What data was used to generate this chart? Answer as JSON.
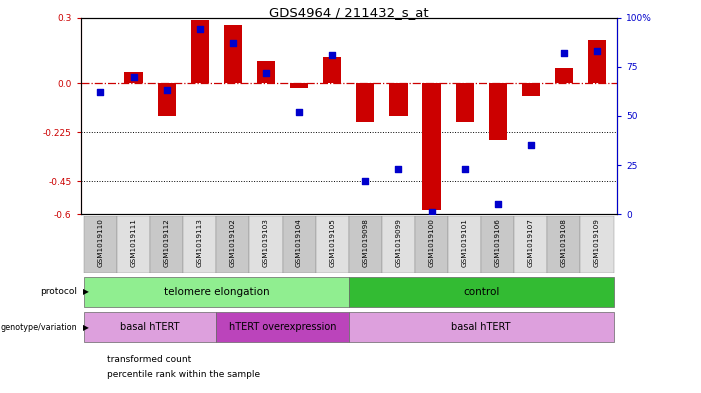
{
  "title": "GDS4964 / 211432_s_at",
  "samples": [
    "GSM1019110",
    "GSM1019111",
    "GSM1019112",
    "GSM1019113",
    "GSM1019102",
    "GSM1019103",
    "GSM1019104",
    "GSM1019105",
    "GSM1019098",
    "GSM1019099",
    "GSM1019100",
    "GSM1019101",
    "GSM1019106",
    "GSM1019107",
    "GSM1019108",
    "GSM1019109"
  ],
  "red_values": [
    0.0,
    0.05,
    -0.15,
    0.29,
    0.265,
    0.1,
    -0.02,
    0.12,
    -0.18,
    -0.15,
    -0.58,
    -0.18,
    -0.26,
    -0.06,
    0.07,
    0.2
  ],
  "blue_values": [
    62,
    70,
    63,
    94,
    87,
    72,
    52,
    81,
    17,
    23,
    1,
    23,
    5,
    35,
    82,
    83
  ],
  "ylim_left": [
    -0.6,
    0.3
  ],
  "ylim_right": [
    0,
    100
  ],
  "left_ticks": [
    0.3,
    0.0,
    -0.225,
    -0.45,
    -0.6
  ],
  "right_ticks": [
    100,
    75,
    50,
    25,
    0
  ],
  "hline_y": 0.0,
  "dotline1": -0.225,
  "dotline2": -0.45,
  "bar_color_red": "#CC0000",
  "bar_color_blue": "#0000CC",
  "bg_color": "#FFFFFF",
  "proto_colors": [
    "#90EE90",
    "#33BB33"
  ],
  "geno_colors": [
    "#DDA0DD",
    "#BB44BB",
    "#DDA0DD"
  ],
  "sample_col_even": "#C8C8C8",
  "sample_col_odd": "#E0E0E0"
}
